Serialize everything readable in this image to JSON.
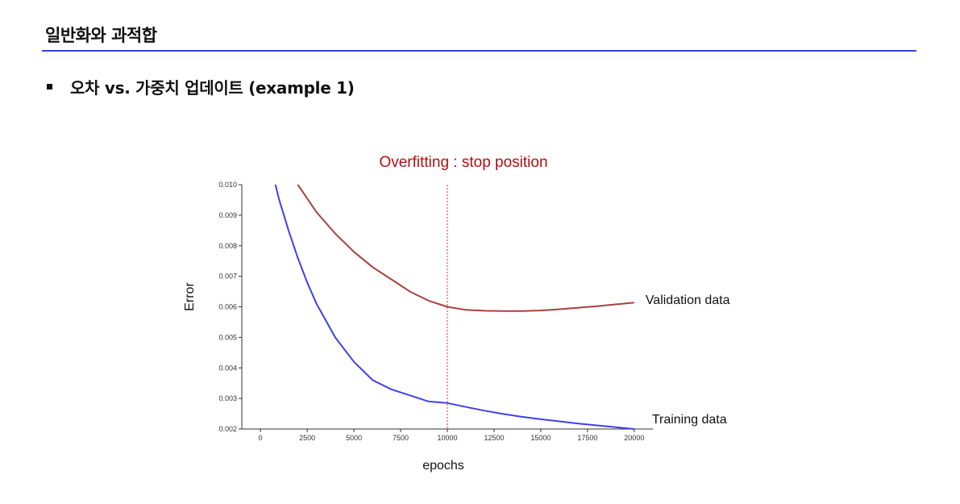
{
  "slide": {
    "title": "일반화와 과적합",
    "bullet": "오차 vs. 가중치 업데이트 (example 1)"
  },
  "chart_data": {
    "type": "line",
    "title": "Overfitting : stop position",
    "xlabel": "epochs",
    "ylabel": "Error",
    "xlim": [
      -1000,
      21000
    ],
    "ylim": [
      0.002,
      0.01
    ],
    "xticks": [
      0,
      2500,
      5000,
      7500,
      10000,
      12500,
      15000,
      17500,
      20000
    ],
    "yticks": [
      "0.002",
      "0.003",
      "0.004",
      "0.005",
      "0.006",
      "0.007",
      "0.008",
      "0.009",
      "0.010"
    ],
    "stop_line_x": 10000,
    "grid": false,
    "colors": {
      "training": "#4040e8",
      "validation": "#a84040",
      "stop_line": "#e05050",
      "title": "#b01010"
    },
    "series": [
      {
        "name": "Training data",
        "x": [
          800,
          1000,
          1500,
          2000,
          2500,
          3000,
          4000,
          5000,
          6000,
          7000,
          8000,
          9000,
          10000,
          11000,
          12000,
          13000,
          14000,
          15000,
          16000,
          17000,
          18000,
          19000,
          20000
        ],
        "y": [
          0.01,
          0.0095,
          0.0085,
          0.0076,
          0.0068,
          0.0061,
          0.005,
          0.0042,
          0.0036,
          0.0033,
          0.0031,
          0.0029,
          0.00285,
          0.00272,
          0.0026,
          0.00249,
          0.0024,
          0.00232,
          0.00225,
          0.00218,
          0.00212,
          0.00206,
          0.002
        ]
      },
      {
        "name": "Validation data",
        "x": [
          2000,
          3000,
          4000,
          5000,
          6000,
          7000,
          8000,
          9000,
          10000,
          11000,
          12000,
          13000,
          14000,
          15000,
          16000,
          17000,
          18000,
          19000,
          20000
        ],
        "y": [
          0.01,
          0.0091,
          0.0084,
          0.0078,
          0.0073,
          0.0069,
          0.0065,
          0.0062,
          0.006,
          0.0059,
          0.00587,
          0.00586,
          0.00586,
          0.00588,
          0.00592,
          0.00597,
          0.00602,
          0.00608,
          0.00614
        ]
      }
    ]
  }
}
